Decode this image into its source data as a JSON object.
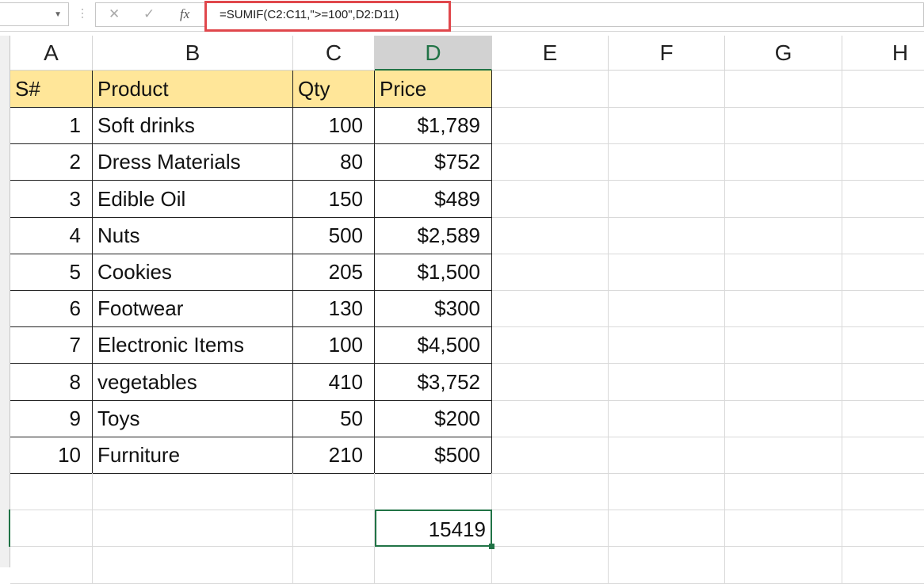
{
  "formula_bar": {
    "name_box": "",
    "formula": "=SUMIF(C2:C11,\">=100\",D2:D11)",
    "cancel_icon": "✕",
    "enter_icon": "✓",
    "fx_icon": "fx"
  },
  "columns": [
    "A",
    "B",
    "C",
    "D",
    "E",
    "F",
    "G",
    "H"
  ],
  "selected_column": "D",
  "table": {
    "headers": [
      "S#",
      "Product",
      "Qty",
      "Price"
    ],
    "rows": [
      [
        "1",
        "Soft drinks",
        "100",
        "$1,789"
      ],
      [
        "2",
        "Dress Materials",
        "80",
        "$752"
      ],
      [
        "3",
        "Edible Oil",
        "150",
        "$489"
      ],
      [
        "4",
        "Nuts",
        "500",
        "$2,589"
      ],
      [
        "5",
        "Cookies",
        "205",
        "$1,500"
      ],
      [
        "6",
        "Footwear",
        "130",
        "$300"
      ],
      [
        "7",
        "Electronic Items",
        "100",
        "$4,500"
      ],
      [
        "8",
        "vegetables",
        "410",
        "$3,752"
      ],
      [
        "9",
        "Toys",
        "50",
        "$200"
      ],
      [
        "10",
        "Furniture",
        "210",
        "$500"
      ]
    ]
  },
  "result": {
    "value": "15419"
  },
  "colors": {
    "header_fill": "#ffe699",
    "selection": "#217346",
    "highlight_box": "#e0474c"
  }
}
